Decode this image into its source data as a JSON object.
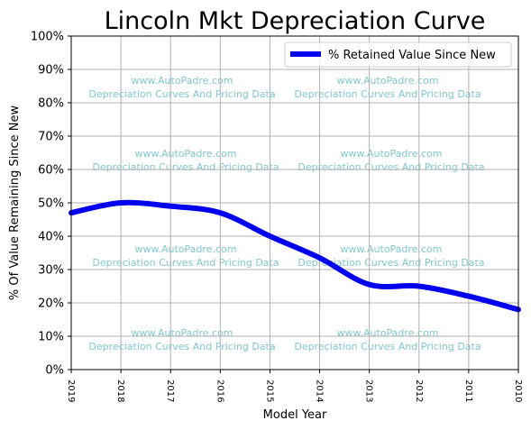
{
  "chart_data": {
    "type": "line",
    "title": "Lincoln Mkt Depreciation Curve",
    "xlabel": "Model Year",
    "ylabel": "% Of Value Remaining Since New",
    "x": [
      "2019",
      "2018",
      "2017",
      "2016",
      "2015",
      "2014",
      "2013",
      "2012",
      "2011",
      "2010"
    ],
    "series": [
      {
        "name": "% Retained Value Since New",
        "color": "#0000ee",
        "values": [
          47,
          50,
          49,
          47,
          40,
          33.5,
          25.5,
          25,
          22,
          18
        ]
      }
    ],
    "ylim": [
      0,
      100
    ],
    "yticks": [
      "0%",
      "10%",
      "20%",
      "30%",
      "40%",
      "50%",
      "60%",
      "70%",
      "80%",
      "90%",
      "100%"
    ],
    "grid": true,
    "legend_position": "top-right",
    "watermark": {
      "line1": "www.AutoPadre.com",
      "line2": "Depreciation Curves And Pricing Data"
    }
  }
}
